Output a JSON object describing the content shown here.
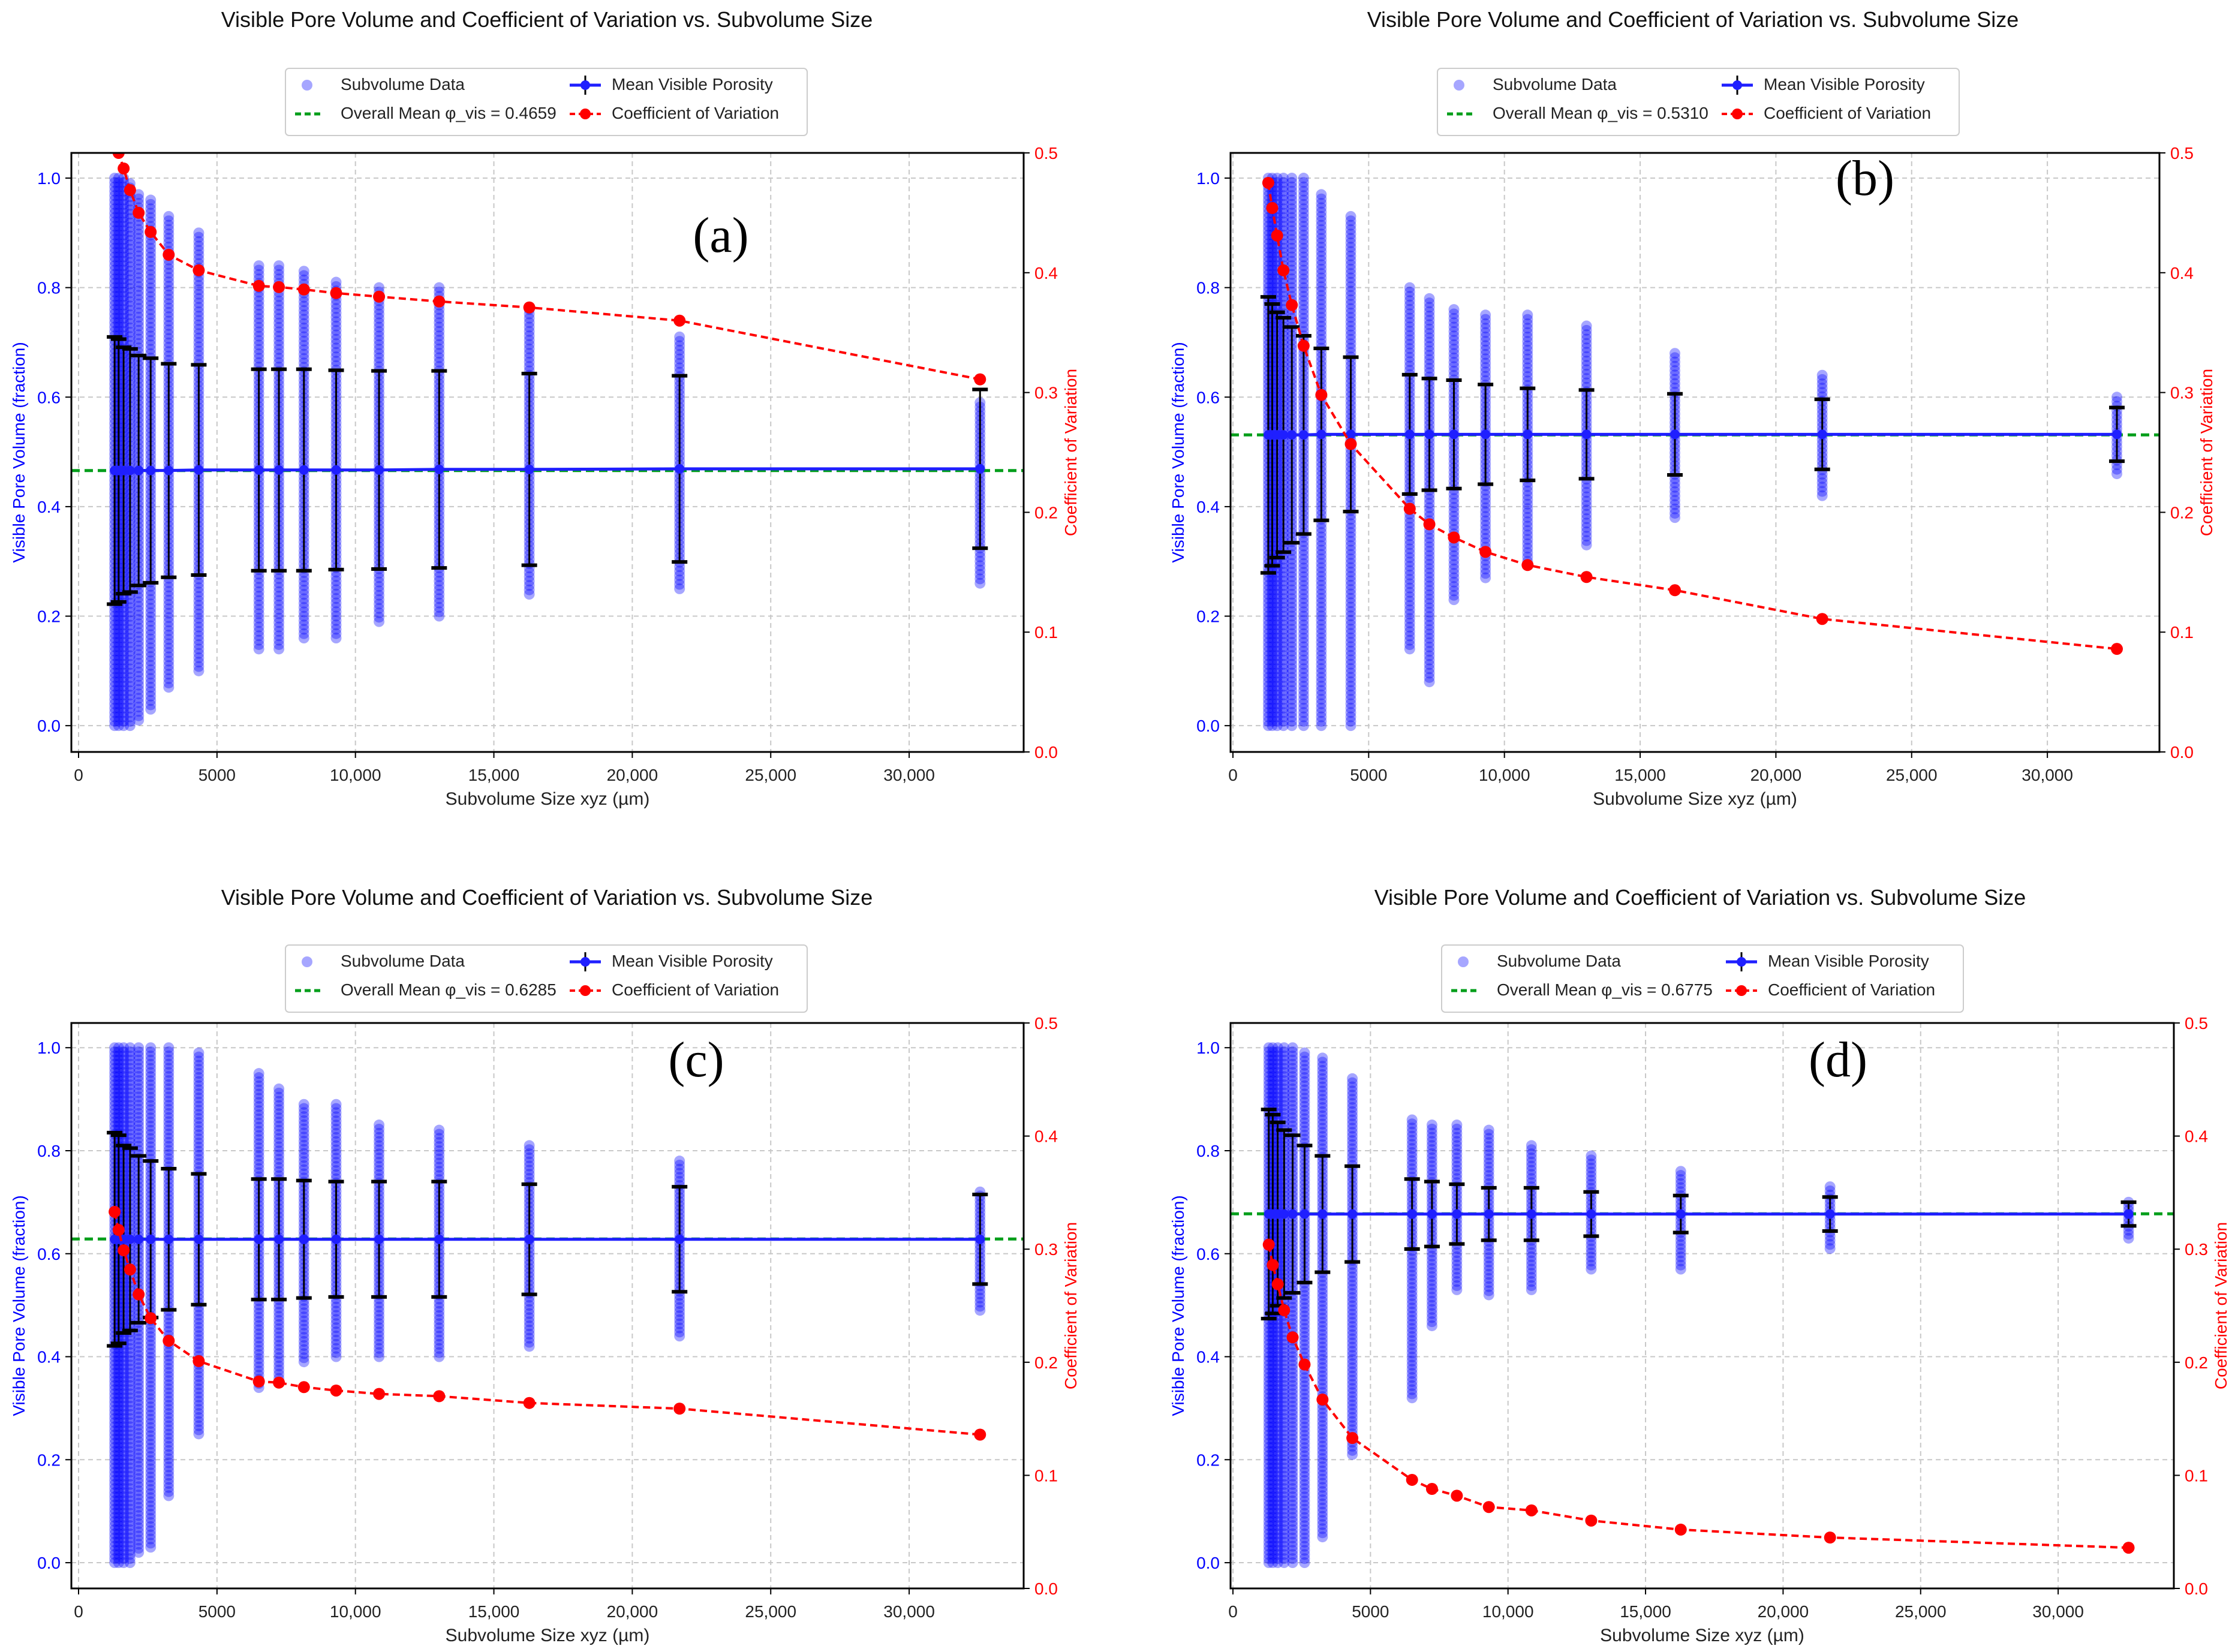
{
  "chart_data": [
    {
      "type": "scatter",
      "panel_label": "(a)",
      "title": "Visible Pore Volume and Coefficient of Variation vs. Subvolume Size",
      "xlabel": "Subvolume Size xyz (µm)",
      "ylabel": "Visible Pore Volume (fraction)",
      "y2label": "Coefficient of Variation",
      "xlim": [
        -260,
        34135
      ],
      "ylim": [
        -0.048,
        1.046
      ],
      "y2lim": [
        0,
        0.5
      ],
      "grid": true,
      "legend_position": "top-center, above axes",
      "xticks": [
        0,
        5000,
        10000,
        15000,
        20000,
        25000,
        30000
      ],
      "xtick_labels": [
        "0",
        "5000",
        "10,000",
        "15,000",
        "20,000",
        "25,000",
        "30,000"
      ],
      "yticks": [
        0,
        0.2,
        0.4,
        0.6,
        0.8,
        1.0
      ],
      "ytick_labels": [
        "0.0",
        "0.2",
        "0.4",
        "0.6",
        "0.8",
        "1.0"
      ],
      "y2ticks": [
        0,
        0.1,
        0.2,
        0.3,
        0.4,
        0.5
      ],
      "y2tick_labels": [
        "0.0",
        "0.1",
        "0.2",
        "0.3",
        "0.4",
        "0.5"
      ],
      "legend": {
        "subvolume": "Subvolume Data",
        "overall_mean": "Overall Mean φ_vis = 0.4659",
        "mean": "Mean Visible Porosity",
        "cv": "Coefficient of Variation"
      },
      "overall_mean": 0.4659,
      "sizes": [
        1302,
        1447,
        1628,
        1860,
        2170,
        2604,
        3256,
        4341,
        6512,
        7236,
        8140,
        9303,
        10853,
        13024,
        16280,
        21707,
        32560
      ],
      "mean_porosity": [
        0.466,
        0.466,
        0.466,
        0.466,
        0.466,
        0.466,
        0.466,
        0.467,
        0.467,
        0.467,
        0.467,
        0.467,
        0.467,
        0.468,
        0.468,
        0.469,
        0.469
      ],
      "std": [
        0.244,
        0.24,
        0.225,
        0.222,
        0.21,
        0.205,
        0.195,
        0.192,
        0.184,
        0.184,
        0.184,
        0.182,
        0.181,
        0.18,
        0.175,
        0.17,
        0.145
      ],
      "cv": [
        0.53,
        0.5,
        0.487,
        0.469,
        0.45,
        0.434,
        0.415,
        0.402,
        0.389,
        0.388,
        0.386,
        0.383,
        0.38,
        0.376,
        0.371,
        0.36,
        0.311
      ],
      "scatter_range": [
        [
          0,
          1
        ],
        [
          0,
          1
        ],
        [
          0,
          1
        ],
        [
          0,
          0.99
        ],
        [
          0.01,
          0.97
        ],
        [
          0.03,
          0.96
        ],
        [
          0.07,
          0.93
        ],
        [
          0.1,
          0.9
        ],
        [
          0.14,
          0.84
        ],
        [
          0.14,
          0.84
        ],
        [
          0.16,
          0.83
        ],
        [
          0.16,
          0.81
        ],
        [
          0.19,
          0.8
        ],
        [
          0.2,
          0.8
        ],
        [
          0.24,
          0.76
        ],
        [
          0.25,
          0.71
        ],
        [
          0.26,
          0.59
        ]
      ]
    },
    {
      "type": "scatter",
      "panel_label": "(b)",
      "title": "Visible Pore Volume and Coefficient of Variation vs. Subvolume Size",
      "xlabel": "Subvolume Size xyz (µm)",
      "ylabel": "Visible Pore Volume (fraction)",
      "y2label": "Coefficient of Variation",
      "xlim": [
        -88,
        34128
      ],
      "ylim": [
        -0.048,
        1.046
      ],
      "y2lim": [
        0,
        0.5
      ],
      "grid": true,
      "legend_position": "top-center, above axes",
      "xticks": [
        0,
        5000,
        10000,
        15000,
        20000,
        25000,
        30000
      ],
      "xtick_labels": [
        "0",
        "5000",
        "10,000",
        "15,000",
        "20,000",
        "25,000",
        "30,000"
      ],
      "yticks": [
        0,
        0.2,
        0.4,
        0.6,
        0.8,
        1.0
      ],
      "ytick_labels": [
        "0.0",
        "0.2",
        "0.4",
        "0.6",
        "0.8",
        "1.0"
      ],
      "y2ticks": [
        0,
        0.1,
        0.2,
        0.3,
        0.4,
        0.5
      ],
      "y2tick_labels": [
        "0.0",
        "0.1",
        "0.2",
        "0.3",
        "0.4",
        "0.5"
      ],
      "legend": {
        "subvolume": "Subvolume Data",
        "overall_mean": "Overall Mean φ_vis = 0.5310",
        "mean": "Mean Visible Porosity",
        "cv": "Coefficient of Variation"
      },
      "overall_mean": 0.531,
      "sizes": [
        1302,
        1447,
        1628,
        1860,
        2170,
        2604,
        3256,
        4341,
        6512,
        7236,
        8140,
        9303,
        10853,
        13024,
        16280,
        21707,
        32560
      ],
      "mean_porosity": [
        0.531,
        0.531,
        0.531,
        0.531,
        0.531,
        0.531,
        0.532,
        0.532,
        0.532,
        0.532,
        0.532,
        0.532,
        0.532,
        0.532,
        0.532,
        0.532,
        0.532
      ],
      "std": [
        0.252,
        0.239,
        0.224,
        0.214,
        0.197,
        0.181,
        0.157,
        0.141,
        0.109,
        0.102,
        0.099,
        0.091,
        0.084,
        0.081,
        0.074,
        0.064,
        0.049
      ],
      "cv": [
        0.475,
        0.454,
        0.431,
        0.402,
        0.373,
        0.339,
        0.298,
        0.257,
        0.203,
        0.19,
        0.179,
        0.167,
        0.156,
        0.146,
        0.135,
        0.111,
        0.086
      ],
      "scatter_range": [
        [
          0,
          1
        ],
        [
          0,
          1
        ],
        [
          0,
          1
        ],
        [
          0,
          1
        ],
        [
          0,
          1
        ],
        [
          0,
          1
        ],
        [
          0,
          0.97
        ],
        [
          0,
          0.93
        ],
        [
          0.14,
          0.8
        ],
        [
          0.08,
          0.78
        ],
        [
          0.23,
          0.76
        ],
        [
          0.27,
          0.75
        ],
        [
          0.3,
          0.75
        ],
        [
          0.33,
          0.73
        ],
        [
          0.38,
          0.68
        ],
        [
          0.42,
          0.64
        ],
        [
          0.46,
          0.6
        ]
      ]
    },
    {
      "type": "scatter",
      "panel_label": "(c)",
      "title": "Visible Pore Volume and Coefficient of Variation vs. Subvolume Size",
      "xlabel": "Subvolume Size xyz (µm)",
      "ylabel": "Visible Pore Volume (fraction)",
      "y2label": "Coefficient of Variation",
      "xlim": [
        -260,
        34135
      ],
      "ylim": [
        -0.05,
        1.048
      ],
      "y2lim": [
        0,
        0.5
      ],
      "grid": true,
      "legend_position": "top-center, above axes",
      "xticks": [
        0,
        5000,
        10000,
        15000,
        20000,
        25000,
        30000
      ],
      "xtick_labels": [
        "0",
        "5000",
        "10,000",
        "15,000",
        "20,000",
        "25,000",
        "30,000"
      ],
      "yticks": [
        0,
        0.2,
        0.4,
        0.6,
        0.8,
        1.0
      ],
      "ytick_labels": [
        "0.0",
        "0.2",
        "0.4",
        "0.6",
        "0.8",
        "1.0"
      ],
      "y2ticks": [
        0,
        0.1,
        0.2,
        0.3,
        0.4,
        0.5
      ],
      "y2tick_labels": [
        "0.0",
        "0.1",
        "0.2",
        "0.3",
        "0.4",
        "0.5"
      ],
      "legend": {
        "subvolume": "Subvolume Data",
        "overall_mean": "Overall Mean φ_vis = 0.6285",
        "mean": "Mean Visible Porosity",
        "cv": "Coefficient of Variation"
      },
      "overall_mean": 0.6285,
      "sizes": [
        1302,
        1447,
        1628,
        1860,
        2170,
        2604,
        3256,
        4341,
        6512,
        7236,
        8140,
        9303,
        10853,
        13024,
        16280,
        21707,
        32560
      ],
      "mean_porosity": [
        0.628,
        0.628,
        0.628,
        0.628,
        0.628,
        0.628,
        0.628,
        0.628,
        0.628,
        0.628,
        0.628,
        0.628,
        0.628,
        0.628,
        0.628,
        0.628,
        0.628
      ],
      "std": [
        0.207,
        0.202,
        0.182,
        0.177,
        0.162,
        0.152,
        0.137,
        0.127,
        0.117,
        0.117,
        0.114,
        0.112,
        0.112,
        0.112,
        0.107,
        0.102,
        0.087
      ],
      "cv": [
        0.333,
        0.317,
        0.299,
        0.282,
        0.26,
        0.239,
        0.219,
        0.201,
        0.183,
        0.182,
        0.178,
        0.175,
        0.172,
        0.17,
        0.164,
        0.159,
        0.136
      ],
      "scatter_range": [
        [
          0,
          1
        ],
        [
          0,
          1
        ],
        [
          0,
          1
        ],
        [
          0,
          1
        ],
        [
          0.02,
          1
        ],
        [
          0.03,
          1
        ],
        [
          0.13,
          1
        ],
        [
          0.25,
          0.99
        ],
        [
          0.34,
          0.95
        ],
        [
          0.35,
          0.92
        ],
        [
          0.39,
          0.89
        ],
        [
          0.4,
          0.89
        ],
        [
          0.4,
          0.85
        ],
        [
          0.4,
          0.84
        ],
        [
          0.42,
          0.81
        ],
        [
          0.44,
          0.78
        ],
        [
          0.49,
          0.72
        ]
      ]
    },
    {
      "type": "scatter",
      "panel_label": "(d)",
      "title": "Visible Pore Volume and Coefficient of Variation vs. Subvolume Size",
      "xlabel": "Subvolume Size xyz (µm)",
      "ylabel": "Visible Pore Volume (fraction)",
      "y2label": "Coefficient of Variation",
      "xlim": [
        -87,
        34205
      ],
      "ylim": [
        -0.05,
        1.048
      ],
      "y2lim": [
        0,
        0.5
      ],
      "grid": true,
      "legend_position": "top-center, above axes",
      "xticks": [
        0,
        5000,
        10000,
        15000,
        20000,
        25000,
        30000
      ],
      "xtick_labels": [
        "0",
        "5000",
        "10,000",
        "15,000",
        "20,000",
        "25,000",
        "30,000"
      ],
      "yticks": [
        0,
        0.2,
        0.4,
        0.6,
        0.8,
        1.0
      ],
      "ytick_labels": [
        "0.0",
        "0.2",
        "0.4",
        "0.6",
        "0.8",
        "1.0"
      ],
      "y2ticks": [
        0,
        0.1,
        0.2,
        0.3,
        0.4,
        0.5
      ],
      "y2tick_labels": [
        "0.0",
        "0.1",
        "0.2",
        "0.3",
        "0.4",
        "0.5"
      ],
      "legend": {
        "subvolume": "Subvolume Data",
        "overall_mean": "Overall Mean φ_vis = 0.6775",
        "mean": "Mean Visible Porosity",
        "cv": "Coefficient of Variation"
      },
      "overall_mean": 0.6775,
      "sizes": [
        1302,
        1447,
        1628,
        1860,
        2170,
        2604,
        3256,
        4341,
        6512,
        7236,
        8140,
        9303,
        10853,
        13024,
        16280,
        21707,
        32560
      ],
      "mean_porosity": [
        0.677,
        0.677,
        0.677,
        0.677,
        0.677,
        0.677,
        0.677,
        0.677,
        0.677,
        0.677,
        0.677,
        0.677,
        0.677,
        0.677,
        0.677,
        0.677,
        0.677
      ],
      "std": [
        0.203,
        0.193,
        0.178,
        0.163,
        0.153,
        0.133,
        0.113,
        0.093,
        0.068,
        0.063,
        0.058,
        0.051,
        0.051,
        0.043,
        0.036,
        0.033,
        0.023
      ],
      "cv": [
        0.304,
        0.286,
        0.269,
        0.246,
        0.222,
        0.198,
        0.167,
        0.133,
        0.096,
        0.088,
        0.082,
        0.072,
        0.069,
        0.06,
        0.052,
        0.045,
        0.036
      ],
      "scatter_range": [
        [
          0,
          1
        ],
        [
          0,
          1
        ],
        [
          0,
          1
        ],
        [
          0,
          1
        ],
        [
          0,
          1
        ],
        [
          0,
          0.99
        ],
        [
          0.05,
          0.98
        ],
        [
          0.21,
          0.94
        ],
        [
          0.32,
          0.86
        ],
        [
          0.46,
          0.85
        ],
        [
          0.53,
          0.85
        ],
        [
          0.52,
          0.84
        ],
        [
          0.53,
          0.81
        ],
        [
          0.57,
          0.79
        ],
        [
          0.57,
          0.76
        ],
        [
          0.61,
          0.73
        ],
        [
          0.63,
          0.7
        ]
      ]
    }
  ],
  "colors": {
    "scatter": "#0000ff",
    "mean_line": "#1f1fff",
    "overall_mean": "#009e1a",
    "cv": "#ff0000",
    "error_bar": "#000000",
    "left_axis": "#0000ff",
    "right_axis": "#ff0000"
  }
}
